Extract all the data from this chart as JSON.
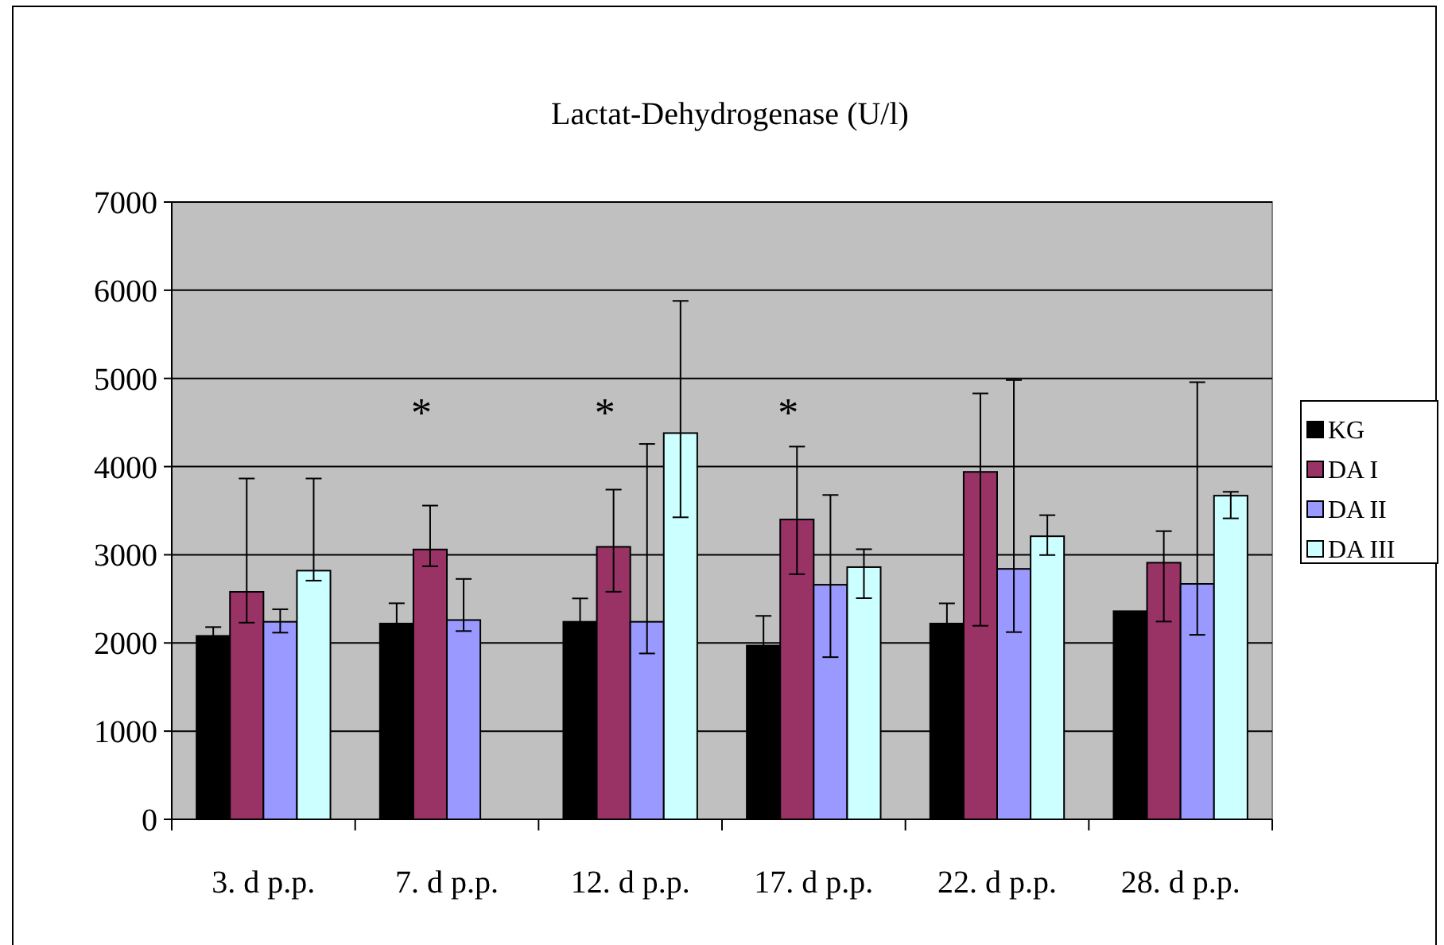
{
  "chart_data": {
    "type": "bar",
    "title": "Lactat-Dehydrogenase (U/l)",
    "categories": [
      "3. d p.p.",
      "7. d p.p.",
      "12. d p.p.",
      "17. d p.p.",
      "22. d p.p.",
      "28. d p.p."
    ],
    "series": [
      {
        "name": "KG",
        "color": "#000000",
        "values": [
          2080,
          2220,
          2240,
          1970,
          2220,
          2360
        ],
        "errors": [
          100,
          230,
          265,
          337,
          229,
          null
        ]
      },
      {
        "name": "DA I",
        "color": "#993366",
        "values": [
          2580,
          3060,
          3090,
          3400,
          3940,
          2910
        ],
        "errors": [
          [
            2230,
            3865
          ],
          [
            2870,
            3558
          ],
          [
            2581,
            3739
          ],
          [
            2780,
            4227
          ],
          [
            2195,
            4830
          ],
          [
            2243,
            3268
          ]
        ]
      },
      {
        "name": "DA II",
        "color": "#9999ff",
        "values": [
          2240,
          2260,
          2240,
          2660,
          2840,
          2670
        ],
        "errors": [
          [
            2117,
            2382
          ],
          [
            2135,
            2726
          ],
          [
            1881,
            4257
          ],
          [
            1839,
            3678
          ],
          [
            2123,
            4981
          ],
          [
            2092,
            4957
          ]
        ]
      },
      {
        "name": "DA III",
        "color": "#ccffff",
        "values": [
          2820,
          null,
          4380,
          2860,
          3210,
          3670
        ],
        "errors": [
          [
            2707,
            3865
          ],
          null,
          [
            3425,
            5879
          ],
          [
            2508,
            3063
          ],
          [
            2997,
            3449
          ],
          [
            3413,
            3714
          ]
        ]
      }
    ],
    "ylim": [
      0,
      7000
    ],
    "yticks": [
      0,
      1000,
      2000,
      3000,
      4000,
      5000,
      6000,
      7000
    ],
    "grid": "y",
    "legend": "right",
    "annotations": [
      "*",
      "*",
      "*"
    ]
  }
}
